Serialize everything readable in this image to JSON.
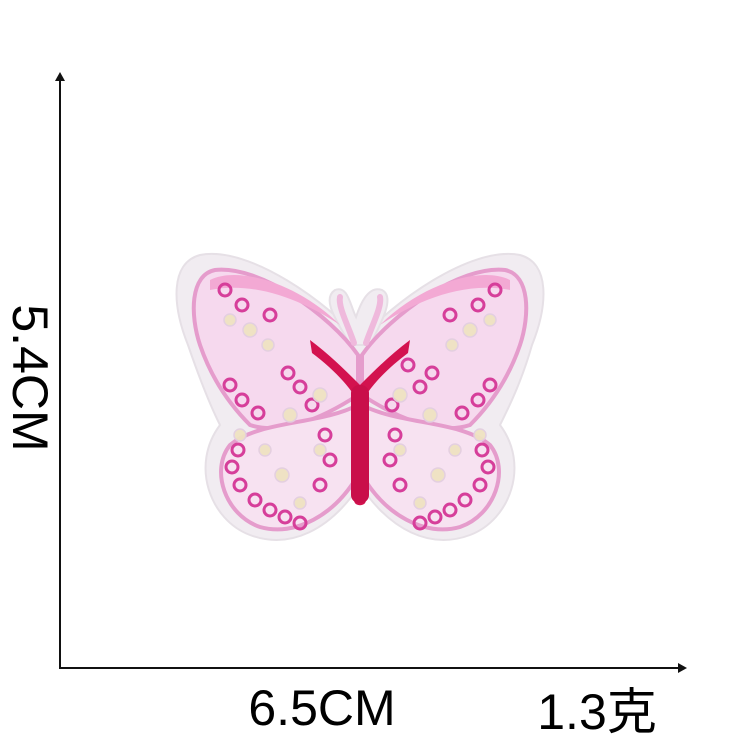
{
  "dimensions": {
    "height_label": "5.4CM",
    "width_label": "6.5CM",
    "weight_label": "1.3克"
  },
  "product": {
    "icon": "butterfly-icon",
    "colors": {
      "felt_border": "#f1ecf1",
      "wing_fill": "#f6d9ee",
      "wing_outline": "#e59ccc",
      "body": "#d3124f",
      "sequin_pink": "#d63e9a",
      "sequin_iridescent": "#efe3c2"
    }
  }
}
